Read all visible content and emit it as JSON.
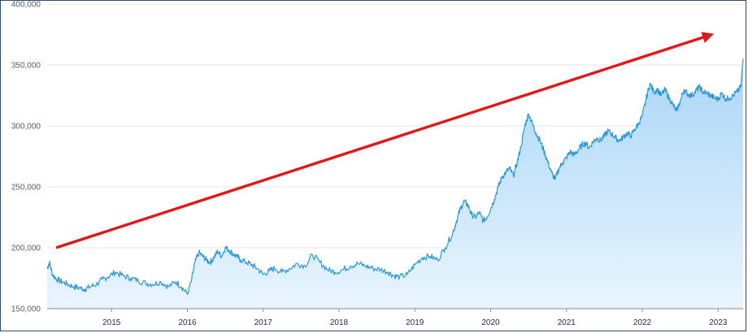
{
  "chart_data": {
    "type": "area",
    "title": "",
    "xlabel": "",
    "ylabel": "",
    "ylim": [
      150000,
      400000
    ],
    "xlim": [
      2014.15,
      2023.33
    ],
    "y_ticks": [
      150000,
      200000,
      250000,
      300000,
      350000,
      400000
    ],
    "y_tick_labels": [
      "150,000",
      "200,000",
      "250,000",
      "300,000",
      "350,000",
      "400,000"
    ],
    "x_ticks": [
      2015,
      2016,
      2017,
      2018,
      2019,
      2020,
      2021,
      2022,
      2023
    ],
    "x_tick_labels": [
      "2015",
      "2016",
      "2017",
      "2018",
      "2019",
      "2020",
      "2021",
      "2022",
      "2023"
    ],
    "grid": true,
    "legend": "none",
    "series": [
      {
        "x": [
          2014.15,
          2014.18,
          2014.22,
          2014.28,
          2014.35,
          2014.42,
          2014.5,
          2014.58,
          2014.65,
          2014.72,
          2014.8,
          2014.88,
          2014.95,
          2015.05,
          2015.15,
          2015.25,
          2015.35,
          2015.45,
          2015.55,
          2015.65,
          2015.75,
          2015.85,
          2015.92,
          2016.0,
          2016.05,
          2016.1,
          2016.15,
          2016.2,
          2016.25,
          2016.3,
          2016.35,
          2016.4,
          2016.45,
          2016.5,
          2016.55,
          2016.6,
          2016.65,
          2016.7,
          2016.78,
          2016.85,
          2016.92,
          2017.0,
          2017.08,
          2017.15,
          2017.25,
          2017.35,
          2017.45,
          2017.55,
          2017.65,
          2017.75,
          2017.85,
          2017.95,
          2018.05,
          2018.15,
          2018.25,
          2018.35,
          2018.45,
          2018.55,
          2018.65,
          2018.72,
          2018.8,
          2018.9,
          2019.0,
          2019.1,
          2019.2,
          2019.3,
          2019.4,
          2019.5,
          2019.55,
          2019.6,
          2019.65,
          2019.7,
          2019.75,
          2019.8,
          2019.85,
          2019.9,
          2019.95,
          2020.0,
          2020.05,
          2020.1,
          2020.15,
          2020.2,
          2020.25,
          2020.3,
          2020.35,
          2020.4,
          2020.45,
          2020.5,
          2020.55,
          2020.6,
          2020.65,
          2020.7,
          2020.75,
          2020.8,
          2020.85,
          2020.9,
          2020.95,
          2021.0,
          2021.05,
          2021.1,
          2021.15,
          2021.2,
          2021.25,
          2021.3,
          2021.35,
          2021.4,
          2021.45,
          2021.5,
          2021.55,
          2021.6,
          2021.65,
          2021.7,
          2021.75,
          2021.8,
          2021.85,
          2021.9,
          2021.95,
          2022.0,
          2022.05,
          2022.1,
          2022.15,
          2022.2,
          2022.25,
          2022.3,
          2022.35,
          2022.4,
          2022.45,
          2022.5,
          2022.55,
          2022.6,
          2022.65,
          2022.7,
          2022.75,
          2022.8,
          2022.85,
          2022.9,
          2022.95,
          2023.0,
          2023.05,
          2023.1,
          2023.15,
          2023.2,
          2023.25,
          2023.3,
          2023.33
        ],
        "values": [
          183000,
          188000,
          178000,
          174000,
          172000,
          170000,
          168000,
          167000,
          166000,
          168000,
          170000,
          174000,
          176000,
          180000,
          177000,
          175000,
          173000,
          171000,
          170000,
          172000,
          168000,
          172000,
          168000,
          162000,
          172000,
          188000,
          196000,
          193000,
          190000,
          188000,
          192000,
          197000,
          193000,
          200000,
          198000,
          195000,
          193000,
          190000,
          188000,
          186000,
          183000,
          178000,
          181000,
          183000,
          180000,
          183000,
          187000,
          185000,
          194000,
          188000,
          182000,
          180000,
          182000,
          185000,
          187000,
          185000,
          183000,
          182000,
          180000,
          177000,
          176000,
          178000,
          186000,
          192000,
          193000,
          190000,
          200000,
          212000,
          222000,
          232000,
          238000,
          235000,
          227000,
          225000,
          229000,
          222000,
          225000,
          232000,
          240000,
          250000,
          258000,
          262000,
          265000,
          259000,
          270000,
          283000,
          300000,
          310000,
          302000,
          294000,
          288000,
          280000,
          271000,
          262000,
          256000,
          265000,
          270000,
          274000,
          279000,
          276000,
          280000,
          284000,
          286000,
          282000,
          287000,
          290000,
          288000,
          292000,
          296000,
          293000,
          290000,
          288000,
          291000,
          294000,
          292000,
          297000,
          302000,
          308000,
          322000,
          335000,
          328000,
          330000,
          325000,
          330000,
          323000,
          318000,
          312000,
          320000,
          330000,
          326000,
          325000,
          328000,
          332000,
          328000,
          327000,
          325000,
          323000,
          322000,
          327000,
          322000,
          323000,
          325000,
          328000,
          332000,
          355000
        ]
      }
    ]
  },
  "annotation": {
    "type": "arrow",
    "color": "#e01818"
  },
  "colors": {
    "line": "#2e98d6",
    "fill_top": "#a9d6f7",
    "fill_bottom": "#e9f5fd",
    "grid": "#e4e4e4",
    "axis": "#8a8a8a",
    "frame": "#2f4a7a"
  }
}
